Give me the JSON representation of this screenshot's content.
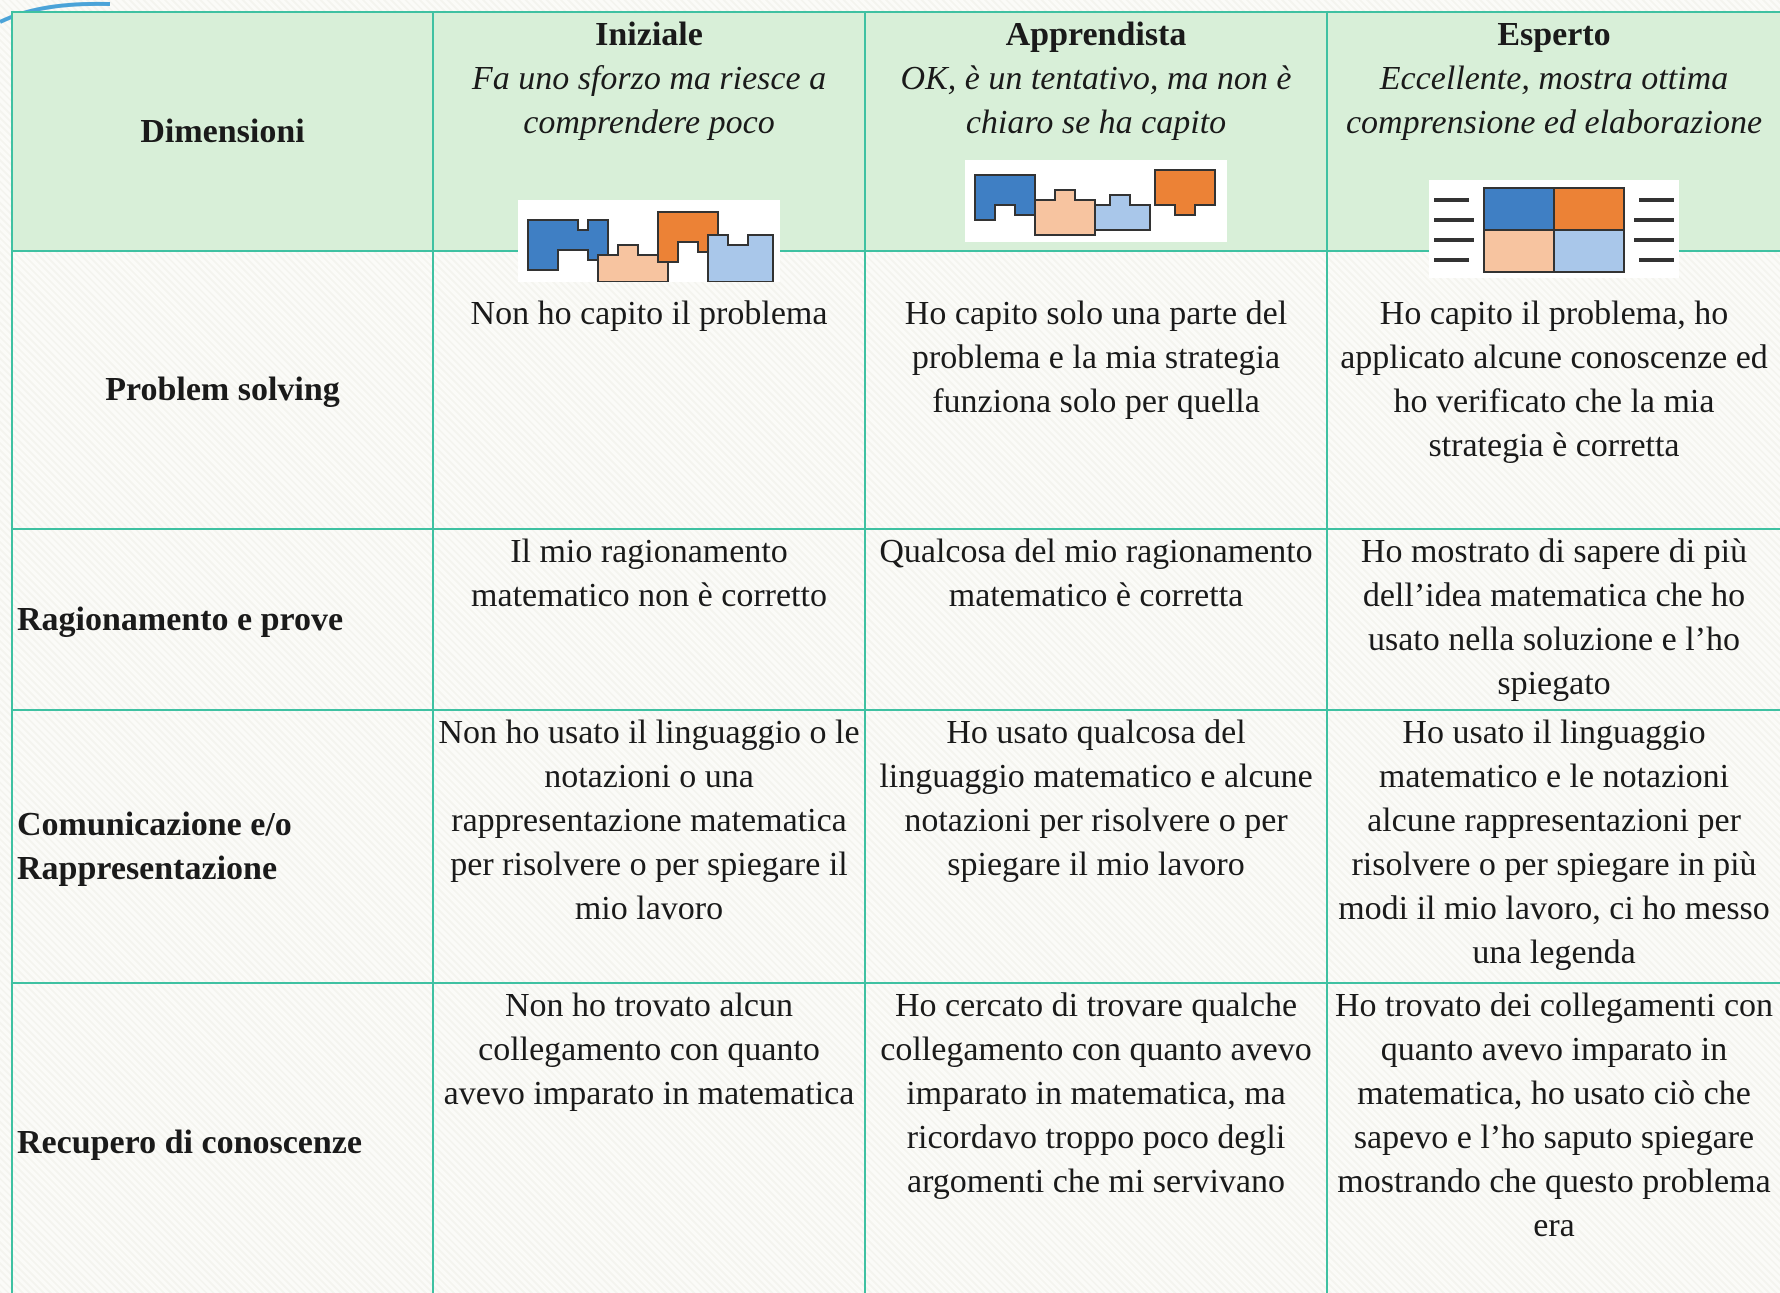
{
  "header": {
    "dimension_label": "Dimensioni",
    "levels": [
      {
        "title": "Iniziale",
        "description": "Fa uno sforzo ma riesce a comprendere poco"
      },
      {
        "title": "Apprendista",
        "description": "OK, è un tentativo, ma non è chiaro se ha capito"
      },
      {
        "title": "Esperto",
        "description": "Eccellente, mostra ottima comprensione ed elaborazione"
      }
    ]
  },
  "rows": [
    {
      "dimension": "Problem solving",
      "cells": [
        "Non ho capito il problema",
        "Ho capito solo una parte del problema e la mia strategia funziona solo per quella",
        "Ho capito il problema, ho applicato alcune conoscenze ed ho verificato che la mia strategia è corretta"
      ]
    },
    {
      "dimension": "Ragionamento e prove",
      "cells": [
        "Il mio ragionamento matematico non è corretto",
        "Qualcosa del mio ragionamento matematico è corretta",
        "Ho mostrato di sapere di più dell’idea matematica che ho usato nella soluzione e l’ho spiegato"
      ]
    },
    {
      "dimension": "Comunicazione e/o Rappresentazione",
      "cells": [
        "Non ho usato il linguaggio o le notazioni o una rappresentazione matematica per risolvere o per spiegare il mio lavoro",
        "Ho usato qualcosa del linguaggio matematico e alcune notazioni per risolvere o per spiegare il mio lavoro",
        "Ho usato il linguaggio matematico e le notazioni alcune rappresentazioni per risolvere o per spiegare in più modi il mio lavoro, ci ho messo una legenda"
      ]
    },
    {
      "dimension": "Recupero di conoscenze",
      "cells": [
        "Non ho trovato alcun collegamento con quanto avevo imparato in matematica",
        "Ho cercato di trovare qualche collegamento con quanto avevo imparato in matematica, ma ricordavo troppo poco degli argomenti che mi servivano",
        "Ho trovato dei collegamenti con quanto avevo imparato in matematica, ho usato ciò che sapevo e l’ho saputo spiegare mostrando che questo problema era"
      ]
    }
  ]
}
